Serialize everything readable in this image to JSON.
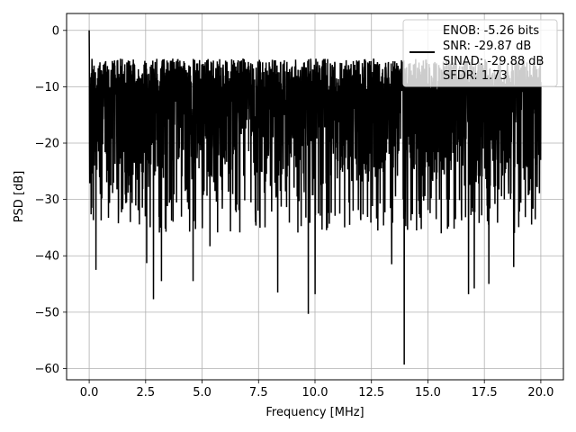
{
  "chart_data": {
    "type": "line",
    "xlabel": "Frequency [MHz]",
    "ylabel": "PSD [dB]",
    "xlim": [
      -1.0,
      21.0
    ],
    "ylim": [
      -62.0,
      3.0
    ],
    "x_ticks": [
      0.0,
      2.5,
      5.0,
      7.5,
      10.0,
      12.5,
      15.0,
      17.5,
      20.0
    ],
    "x_tick_labels": [
      "0.0",
      "2.5",
      "5.0",
      "7.5",
      "10.0",
      "12.5",
      "15.0",
      "17.5",
      "20.0"
    ],
    "y_ticks": [
      0,
      -10,
      -20,
      -30,
      -40,
      -50,
      -60
    ],
    "y_tick_labels": [
      "0",
      "−10",
      "−20",
      "−30",
      "−40",
      "−50",
      "−60"
    ],
    "grid": true,
    "legend_position": "top-right",
    "legend_lines": [
      "ENOB: -5.26 bits",
      "SNR: -29.87 dB",
      "SINAD: -29.88 dB",
      "SFDR: 1.73"
    ],
    "series": [
      {
        "color": "#000000",
        "x_range": [
          0.0,
          20.0
        ],
        "peak": {
          "x": 0.0,
          "y": 0.0
        },
        "upper_envelope": -5.0,
        "typical_min": -32.0,
        "deep_dips": [
          {
            "x": 0.3,
            "y": -42.5
          },
          {
            "x": 2.55,
            "y": -41.3
          },
          {
            "x": 2.85,
            "y": -47.7
          },
          {
            "x": 3.2,
            "y": -44.5
          },
          {
            "x": 4.6,
            "y": -44.5
          },
          {
            "x": 5.35,
            "y": -38.3
          },
          {
            "x": 8.35,
            "y": -46.5
          },
          {
            "x": 9.7,
            "y": -50.3
          },
          {
            "x": 10.0,
            "y": -46.8
          },
          {
            "x": 13.4,
            "y": -41.5
          },
          {
            "x": 13.95,
            "y": -59.3
          },
          {
            "x": 16.8,
            "y": -46.8
          },
          {
            "x": 17.05,
            "y": -45.8
          },
          {
            "x": 17.7,
            "y": -45.0
          },
          {
            "x": 18.8,
            "y": -42.0
          }
        ]
      }
    ]
  }
}
